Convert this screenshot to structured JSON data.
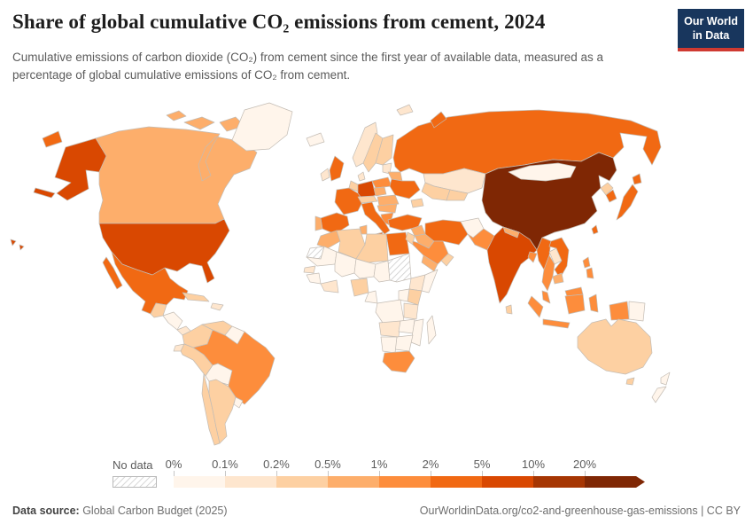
{
  "header": {
    "title": "Share of global cumulative CO₂ emissions from cement, 2024",
    "subtitle": "Cumulative emissions of carbon dioxide (CO₂) from cement since the first year of available data, measured as a percentage of global cumulative emissions of CO₂ from cement.",
    "logo": {
      "line1": "Our World",
      "line2": "in Data",
      "bg_color": "#18365d",
      "accent_color": "#cf3a31"
    }
  },
  "legend": {
    "no_data_label": "No data"
  },
  "footer": {
    "source_label": "Data source:",
    "source_text": " Global Carbon Budget (2025)",
    "credit": "OurWorldinData.org/co2-and-greenhouse-gas-emissions | CC BY"
  },
  "chart_data": {
    "type": "heatmap",
    "subtype": "choropleth-world-map",
    "title": "Share of global cumulative CO₂ emissions from cement, 2024",
    "unit": "% of global cumulative CO₂ emissions from cement",
    "legend_bin_labels": [
      "0%",
      "0.1%",
      "0.2%",
      "0.5%",
      "1%",
      "2%",
      "5%",
      "10%",
      "20%"
    ],
    "bin_order": [
      "0-0.1%",
      "0.1-0.2%",
      "0.2-0.5%",
      "0.5-1%",
      "1-2%",
      "2-5%",
      "5-10%",
      "10-20%",
      "20%+"
    ],
    "bin_colors": {
      "0-0.1%": "#fff5eb",
      "0.1-0.2%": "#fee6ce",
      "0.2-0.5%": "#fdd0a2",
      "0.5-1%": "#fdae6b",
      "1-2%": "#fd8d3c",
      "2-5%": "#f16913",
      "5-10%": "#d94801",
      "10-20%": "#a63603",
      "20%+": "#7f2704"
    },
    "no_data_pattern": "diagonal-hatch",
    "countries": [
      {
        "id": "usa",
        "name": "United States",
        "bin": "5-10%"
      },
      {
        "id": "canada",
        "name": "Canada",
        "bin": "0.5-1%"
      },
      {
        "id": "greenland",
        "name": "Greenland",
        "bin": "0-0.1%"
      },
      {
        "id": "iceland",
        "name": "Iceland",
        "bin": "0-0.1%"
      },
      {
        "id": "mexico",
        "name": "Mexico",
        "bin": "2-5%"
      },
      {
        "id": "guatemala",
        "name": "Guatemala",
        "bin": "0.2-0.5%"
      },
      {
        "id": "honduras-nicaragua",
        "name": "Honduras/Nicaragua",
        "bin": "0-0.1%"
      },
      {
        "id": "panama",
        "name": "Panama",
        "bin": "0.1-0.2%"
      },
      {
        "id": "cuba",
        "name": "Cuba",
        "bin": "0.2-0.5%"
      },
      {
        "id": "hispaniola",
        "name": "Dominican Republic/Haiti",
        "bin": "0.1-0.2%"
      },
      {
        "id": "colombia",
        "name": "Colombia",
        "bin": "0.2-0.5%"
      },
      {
        "id": "venezuela",
        "name": "Venezuela",
        "bin": "0.2-0.5%"
      },
      {
        "id": "guyanas",
        "name": "Guyana/Suriname",
        "bin": "0-0.1%"
      },
      {
        "id": "ecuador",
        "name": "Ecuador",
        "bin": "0.1-0.2%"
      },
      {
        "id": "peru",
        "name": "Peru",
        "bin": "0.2-0.5%"
      },
      {
        "id": "brazil",
        "name": "Brazil",
        "bin": "1-2%"
      },
      {
        "id": "bolivia",
        "name": "Bolivia",
        "bin": "0-0.1%"
      },
      {
        "id": "paraguay",
        "name": "Paraguay",
        "bin": "0-0.1%"
      },
      {
        "id": "chile",
        "name": "Chile",
        "bin": "0.2-0.5%"
      },
      {
        "id": "argentina",
        "name": "Argentina",
        "bin": "0.2-0.5%"
      },
      {
        "id": "uruguay",
        "name": "Uruguay",
        "bin": "0-0.1%"
      },
      {
        "id": "ireland",
        "name": "Ireland",
        "bin": "0.1-0.2%"
      },
      {
        "id": "uk",
        "name": "United Kingdom",
        "bin": "2-5%"
      },
      {
        "id": "norway",
        "name": "Norway",
        "bin": "0.1-0.2%"
      },
      {
        "id": "sweden",
        "name": "Sweden",
        "bin": "0.2-0.5%"
      },
      {
        "id": "finland",
        "name": "Finland",
        "bin": "0.2-0.5%"
      },
      {
        "id": "baltics",
        "name": "Baltic states",
        "bin": "0.1-0.2%"
      },
      {
        "id": "denmark",
        "name": "Denmark",
        "bin": "0.1-0.2%"
      },
      {
        "id": "benelux",
        "name": "Belgium/Netherlands",
        "bin": "0.2-0.5%"
      },
      {
        "id": "germany",
        "name": "Germany",
        "bin": "5-10%"
      },
      {
        "id": "poland",
        "name": "Poland",
        "bin": "1-2%"
      },
      {
        "id": "czechia",
        "name": "Czechia/Slovakia",
        "bin": "0.5-1%"
      },
      {
        "id": "belarus",
        "name": "Belarus",
        "bin": "0.5-1%"
      },
      {
        "id": "ukraine",
        "name": "Ukraine",
        "bin": "2-5%"
      },
      {
        "id": "france",
        "name": "France",
        "bin": "2-5%"
      },
      {
        "id": "alpine",
        "name": "Switzerland/Austria",
        "bin": "0.2-0.5%"
      },
      {
        "id": "hungary-romania",
        "name": "Hungary/Romania",
        "bin": "0.5-1%"
      },
      {
        "id": "serbia-bulgaria",
        "name": "Serbia/Bulgaria",
        "bin": "0.5-1%"
      },
      {
        "id": "greece",
        "name": "Greece",
        "bin": "1-2%"
      },
      {
        "id": "italy",
        "name": "Italy",
        "bin": "2-5%"
      },
      {
        "id": "spain",
        "name": "Spain",
        "bin": "2-5%"
      },
      {
        "id": "portugal",
        "name": "Portugal",
        "bin": "0.5-1%"
      },
      {
        "id": "russia",
        "name": "Russia",
        "bin": "2-5%"
      },
      {
        "id": "kazakhstan",
        "name": "Kazakhstan",
        "bin": "0.1-0.2%"
      },
      {
        "id": "uzbek-turkmen",
        "name": "Uzbekistan/Turkmenistan",
        "bin": "0.2-0.5%"
      },
      {
        "id": "kyrgyz-tajik",
        "name": "Kyrgyzstan/Tajikistan",
        "bin": "0.2-0.5%"
      },
      {
        "id": "caucasus",
        "name": "Caucasus",
        "bin": "0.2-0.5%"
      },
      {
        "id": "turkey",
        "name": "Turkey",
        "bin": "2-5%"
      },
      {
        "id": "syria",
        "name": "Syria",
        "bin": "0.5-1%"
      },
      {
        "id": "jordan-israel",
        "name": "Jordan/Israel",
        "bin": "0.2-0.5%"
      },
      {
        "id": "iraq",
        "name": "Iraq",
        "bin": "0.5-1%"
      },
      {
        "id": "iran",
        "name": "Iran",
        "bin": "2-5%"
      },
      {
        "id": "afghanistan",
        "name": "Afghanistan",
        "bin": "0-0.1%"
      },
      {
        "id": "pakistan",
        "name": "Pakistan",
        "bin": "1-2%"
      },
      {
        "id": "saudi-arabia",
        "name": "Saudi Arabia",
        "bin": "1-2%"
      },
      {
        "id": "yemen",
        "name": "Yemen",
        "bin": "0.5-1%"
      },
      {
        "id": "oman",
        "name": "Oman",
        "bin": "0.2-0.5%"
      },
      {
        "id": "india",
        "name": "India",
        "bin": "5-10%"
      },
      {
        "id": "nepal",
        "name": "Nepal",
        "bin": "0.5-1%"
      },
      {
        "id": "bangladesh",
        "name": "Bangladesh",
        "bin": "1-2%"
      },
      {
        "id": "sri-lanka",
        "name": "Sri Lanka",
        "bin": "0.2-0.5%"
      },
      {
        "id": "china",
        "name": "China",
        "bin": "20%+"
      },
      {
        "id": "mongolia",
        "name": "Mongolia",
        "bin": "0-0.1%"
      },
      {
        "id": "north-korea",
        "name": "North Korea",
        "bin": "0.2-0.5%"
      },
      {
        "id": "south-korea",
        "name": "South Korea",
        "bin": "2-5%"
      },
      {
        "id": "japan",
        "name": "Japan",
        "bin": "2-5%"
      },
      {
        "id": "taiwan",
        "name": "Taiwan",
        "bin": "2-5%"
      },
      {
        "id": "philippines",
        "name": "Philippines",
        "bin": "1-2%"
      },
      {
        "id": "myanmar",
        "name": "Myanmar",
        "bin": "2-5%"
      },
      {
        "id": "laos",
        "name": "Laos",
        "bin": "0.1-0.2%"
      },
      {
        "id": "vietnam",
        "name": "Vietnam",
        "bin": "2-5%"
      },
      {
        "id": "thailand",
        "name": "Thailand",
        "bin": "1-2%"
      },
      {
        "id": "cambodia",
        "name": "Cambodia",
        "bin": "0.5-1%"
      },
      {
        "id": "malaysia",
        "name": "Malaysia",
        "bin": "1-2%"
      },
      {
        "id": "indonesia",
        "name": "Indonesia",
        "bin": "1-2%"
      },
      {
        "id": "png",
        "name": "Papua New Guinea",
        "bin": "0-0.1%"
      },
      {
        "id": "australia",
        "name": "Australia",
        "bin": "0.2-0.5%"
      },
      {
        "id": "new-zealand",
        "name": "New Zealand",
        "bin": "0-0.1%"
      },
      {
        "id": "morocco",
        "name": "Morocco",
        "bin": "0.5-1%"
      },
      {
        "id": "western-sahara",
        "name": "Western Sahara",
        "bin": "no-data"
      },
      {
        "id": "algeria",
        "name": "Algeria",
        "bin": "0.2-0.5%"
      },
      {
        "id": "tunisia",
        "name": "Tunisia",
        "bin": "0.5-1%"
      },
      {
        "id": "libya",
        "name": "Libya",
        "bin": "0.2-0.5%"
      },
      {
        "id": "egypt",
        "name": "Egypt",
        "bin": "2-5%"
      },
      {
        "id": "mauritania",
        "name": "Mauritania",
        "bin": "0-0.1%"
      },
      {
        "id": "senegal",
        "name": "Senegal",
        "bin": "0.1-0.2%"
      },
      {
        "id": "guinea",
        "name": "Guinea",
        "bin": "0-0.1%"
      },
      {
        "id": "ghana-ivory",
        "name": "Ghana/Côte d'Ivoire",
        "bin": "0.1-0.2%"
      },
      {
        "id": "mali",
        "name": "Mali",
        "bin": "0-0.1%"
      },
      {
        "id": "niger",
        "name": "Niger",
        "bin": "0-0.1%"
      },
      {
        "id": "chad",
        "name": "Chad",
        "bin": "0-0.1%"
      },
      {
        "id": "sudan",
        "name": "Sudan",
        "bin": "no-data"
      },
      {
        "id": "nigeria",
        "name": "Nigeria",
        "bin": "0.2-0.5%"
      },
      {
        "id": "cameroon-gabon",
        "name": "Cameroon/Gabon",
        "bin": "0-0.1%"
      },
      {
        "id": "ethiopia",
        "name": "Ethiopia",
        "bin": "0.1-0.2%"
      },
      {
        "id": "somalia",
        "name": "Somalia",
        "bin": "0-0.1%"
      },
      {
        "id": "kenya",
        "name": "Kenya",
        "bin": "0.2-0.5%"
      },
      {
        "id": "uganda",
        "name": "Uganda",
        "bin": "0-0.1%"
      },
      {
        "id": "drc",
        "name": "DR Congo",
        "bin": "0-0.1%"
      },
      {
        "id": "tanzania",
        "name": "Tanzania",
        "bin": "0.1-0.2%"
      },
      {
        "id": "angola",
        "name": "Angola",
        "bin": "0.1-0.2%"
      },
      {
        "id": "zambia",
        "name": "Zambia",
        "bin": "0-0.1%"
      },
      {
        "id": "mozambique",
        "name": "Mozambique",
        "bin": "0-0.1%"
      },
      {
        "id": "zimbabwe-botswana",
        "name": "Zimbabwe/Botswana",
        "bin": "0-0.1%"
      },
      {
        "id": "namibia",
        "name": "Namibia",
        "bin": "0-0.1%"
      },
      {
        "id": "south-africa",
        "name": "South Africa",
        "bin": "1-2%"
      },
      {
        "id": "madagascar",
        "name": "Madagascar",
        "bin": "0-0.1%"
      }
    ]
  }
}
